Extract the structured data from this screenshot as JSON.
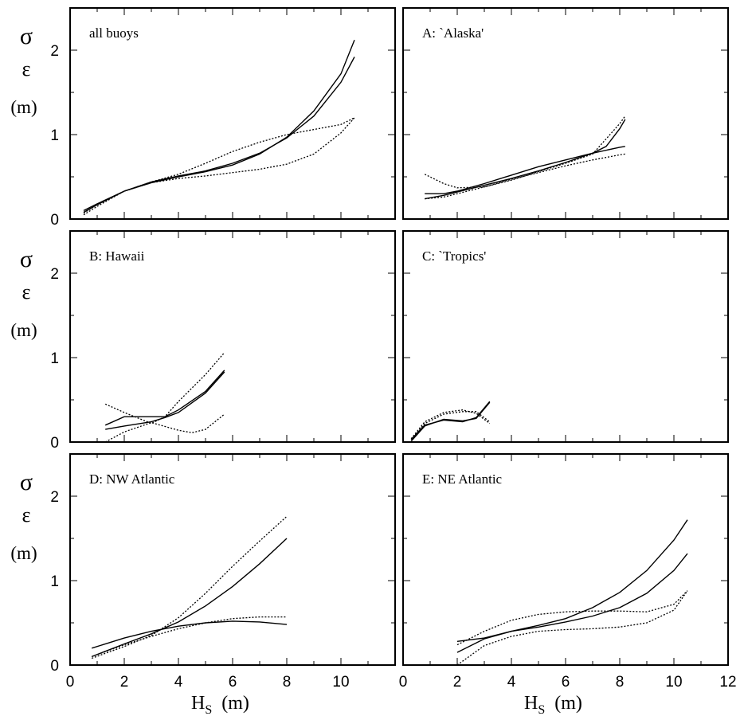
{
  "chart_data": [
    {
      "type": "line",
      "panel": "all buoys",
      "xlim": [
        0,
        12
      ],
      "ylim": [
        0,
        2.5
      ],
      "series": [
        {
          "style": "solid",
          "x": [
            0.5,
            1,
            2,
            3,
            4,
            5,
            6,
            7,
            8,
            9,
            10,
            10.5
          ],
          "y": [
            0.1,
            0.18,
            0.33,
            0.43,
            0.5,
            0.56,
            0.64,
            0.77,
            0.97,
            1.28,
            1.72,
            2.12
          ]
        },
        {
          "style": "solid",
          "x": [
            0.5,
            1,
            2,
            3,
            4,
            5,
            6,
            7,
            8,
            9,
            10,
            10.5
          ],
          "y": [
            0.08,
            0.17,
            0.33,
            0.44,
            0.51,
            0.57,
            0.66,
            0.78,
            0.96,
            1.22,
            1.62,
            1.92
          ]
        },
        {
          "style": "dotted",
          "x": [
            0.5,
            1,
            2,
            3,
            4,
            5,
            6,
            7,
            8,
            9,
            10,
            10.5
          ],
          "y": [
            0.05,
            0.15,
            0.33,
            0.44,
            0.53,
            0.66,
            0.8,
            0.91,
            1.0,
            1.06,
            1.12,
            1.2
          ]
        },
        {
          "style": "dotted",
          "x": [
            0.5,
            1,
            2,
            3,
            4,
            5,
            6,
            7,
            8,
            9,
            10,
            10.5
          ],
          "y": [
            0.07,
            0.17,
            0.33,
            0.43,
            0.48,
            0.51,
            0.55,
            0.59,
            0.65,
            0.77,
            1.02,
            1.2
          ]
        }
      ]
    },
    {
      "type": "line",
      "panel": "A: `Alaska'",
      "xlim": [
        0,
        12
      ],
      "ylim": [
        0,
        2.5
      ],
      "series": [
        {
          "style": "solid",
          "x": [
            0.8,
            1.5,
            2,
            3,
            4,
            5,
            6,
            7,
            8,
            8.2
          ],
          "y": [
            0.3,
            0.3,
            0.33,
            0.42,
            0.52,
            0.62,
            0.7,
            0.78,
            0.85,
            0.86
          ]
        },
        {
          "style": "solid",
          "x": [
            0.8,
            1.5,
            2,
            3,
            4,
            5,
            6,
            7,
            7.5,
            8,
            8.2
          ],
          "y": [
            0.24,
            0.28,
            0.32,
            0.4,
            0.48,
            0.57,
            0.67,
            0.78,
            0.86,
            1.07,
            1.18
          ]
        },
        {
          "style": "dotted",
          "x": [
            0.8,
            1.5,
            2,
            3,
            4,
            5,
            6,
            7,
            8,
            8.2
          ],
          "y": [
            0.53,
            0.42,
            0.37,
            0.38,
            0.46,
            0.56,
            0.66,
            0.77,
            1.13,
            1.22
          ]
        },
        {
          "style": "dotted",
          "x": [
            0.8,
            1.5,
            2,
            3,
            4,
            5,
            6,
            7,
            8,
            8.2
          ],
          "y": [
            0.24,
            0.26,
            0.3,
            0.38,
            0.47,
            0.55,
            0.63,
            0.7,
            0.76,
            0.77
          ]
        }
      ]
    },
    {
      "type": "line",
      "panel": "B: Hawaii",
      "xlim": [
        0,
        12
      ],
      "ylim": [
        0,
        2.5
      ],
      "series": [
        {
          "style": "solid",
          "x": [
            1.3,
            2,
            3,
            3.5,
            4,
            5,
            5.7
          ],
          "y": [
            0.2,
            0.3,
            0.3,
            0.3,
            0.38,
            0.6,
            0.85
          ]
        },
        {
          "style": "solid",
          "x": [
            1.3,
            2,
            3,
            3.5,
            4,
            5,
            5.7
          ],
          "y": [
            0.15,
            0.19,
            0.24,
            0.29,
            0.35,
            0.58,
            0.83
          ]
        },
        {
          "style": "dotted",
          "x": [
            1.3,
            2,
            3,
            3.5,
            4,
            5,
            5.7
          ],
          "y": [
            0.45,
            0.35,
            0.22,
            0.3,
            0.48,
            0.8,
            1.06
          ]
        },
        {
          "style": "dotted",
          "x": [
            1.3,
            2,
            3,
            4,
            4.5,
            5,
            5.7
          ],
          "y": [
            0.0,
            0.12,
            0.23,
            0.14,
            0.11,
            0.15,
            0.33
          ]
        }
      ]
    },
    {
      "type": "line",
      "panel": "C: `Tropics'",
      "xlim": [
        0,
        12
      ],
      "ylim": [
        0,
        2.5
      ],
      "series": [
        {
          "style": "solid",
          "x": [
            0.3,
            0.8,
            1.5,
            2.2,
            2.7,
            3.2
          ],
          "y": [
            0.03,
            0.2,
            0.26,
            0.24,
            0.29,
            0.48
          ]
        },
        {
          "style": "solid",
          "x": [
            0.3,
            0.8,
            1.5,
            2.2,
            2.7,
            3.2
          ],
          "y": [
            0.01,
            0.19,
            0.27,
            0.25,
            0.28,
            0.47
          ]
        },
        {
          "style": "dotted",
          "x": [
            0.3,
            0.8,
            1.5,
            2.2,
            2.7,
            3.2
          ],
          "y": [
            0.04,
            0.24,
            0.35,
            0.38,
            0.34,
            0.22
          ]
        },
        {
          "style": "dotted",
          "x": [
            0.3,
            0.8,
            1.5,
            2.2,
            2.7,
            3.2
          ],
          "y": [
            0.03,
            0.22,
            0.33,
            0.36,
            0.36,
            0.24
          ]
        }
      ]
    },
    {
      "type": "line",
      "panel": "D: NW Atlantic",
      "xlim": [
        0,
        12
      ],
      "ylim": [
        0,
        2.5
      ],
      "series": [
        {
          "style": "solid",
          "x": [
            0.8,
            2,
            3,
            4,
            5,
            6,
            7,
            8
          ],
          "y": [
            0.2,
            0.32,
            0.4,
            0.46,
            0.5,
            0.52,
            0.51,
            0.48
          ]
        },
        {
          "style": "solid",
          "x": [
            0.8,
            2,
            3,
            4,
            5,
            6,
            7,
            8
          ],
          "y": [
            0.1,
            0.25,
            0.37,
            0.51,
            0.7,
            0.93,
            1.2,
            1.5
          ]
        },
        {
          "style": "dotted",
          "x": [
            0.8,
            2,
            3,
            4,
            5,
            6,
            7,
            8
          ],
          "y": [
            0.08,
            0.22,
            0.35,
            0.56,
            0.85,
            1.17,
            1.47,
            1.76
          ]
        },
        {
          "style": "dotted",
          "x": [
            0.8,
            2,
            3,
            4,
            5,
            6,
            7,
            8
          ],
          "y": [
            0.1,
            0.24,
            0.34,
            0.43,
            0.5,
            0.55,
            0.57,
            0.57
          ]
        }
      ]
    },
    {
      "type": "line",
      "panel": "E: NE Atlantic",
      "xlim": [
        0,
        12
      ],
      "ylim": [
        0,
        2.5
      ],
      "series": [
        {
          "style": "solid",
          "x": [
            2,
            3,
            4,
            5,
            6,
            7,
            8,
            9,
            10,
            10.5
          ],
          "y": [
            0.28,
            0.32,
            0.4,
            0.47,
            0.55,
            0.68,
            0.86,
            1.12,
            1.48,
            1.72
          ]
        },
        {
          "style": "solid",
          "x": [
            2,
            3,
            4,
            5,
            6,
            7,
            8,
            9,
            10,
            10.5
          ],
          "y": [
            0.15,
            0.31,
            0.4,
            0.45,
            0.51,
            0.58,
            0.68,
            0.85,
            1.12,
            1.32
          ]
        },
        {
          "style": "dotted",
          "x": [
            2,
            3,
            4,
            5,
            6,
            7,
            8,
            9,
            10,
            10.5
          ],
          "y": [
            0.24,
            0.4,
            0.53,
            0.6,
            0.63,
            0.64,
            0.64,
            0.63,
            0.72,
            0.88
          ]
        },
        {
          "style": "dotted",
          "x": [
            2,
            3,
            4,
            5,
            6,
            7,
            8,
            9,
            10,
            10.5
          ],
          "y": [
            0.0,
            0.23,
            0.34,
            0.4,
            0.42,
            0.43,
            0.45,
            0.5,
            0.65,
            0.88
          ]
        }
      ]
    }
  ],
  "y_axis": {
    "sigma": "σ",
    "epsilon": "ε",
    "unit": "(m)",
    "ticks": [
      "0",
      "1",
      "2"
    ]
  },
  "x_axis": {
    "symbol": "H",
    "subscript": "S",
    "unit": "(m)",
    "ticks": [
      "0",
      "2",
      "4",
      "6",
      "8",
      "10",
      "12"
    ]
  }
}
